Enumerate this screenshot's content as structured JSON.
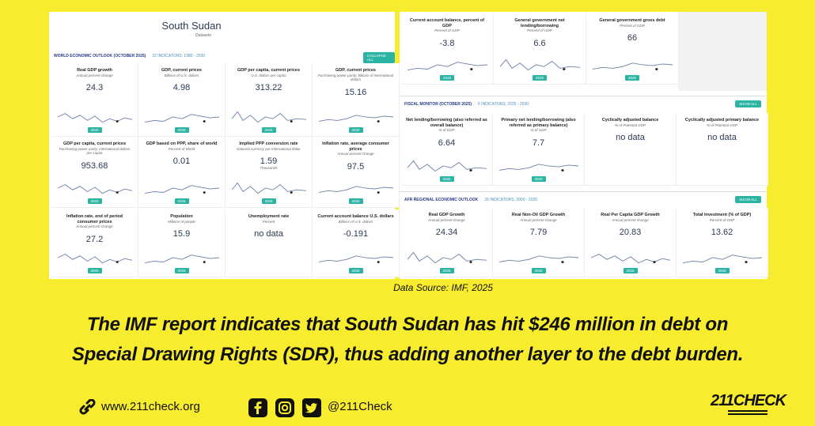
{
  "left_panel": {
    "title": "South Sudan",
    "subtitle": "Datasets",
    "section": {
      "name": "WORLD ECONOMIC OUTLOOK (OCTOBER 2025)",
      "count": "22 INDICATORS, 1980 - 2030",
      "button": "COLLAPSE ALL"
    },
    "cards": [
      {
        "title": "Real GDP growth",
        "subtitle": "Annual percent change",
        "value": 24.3,
        "year": 2025
      },
      {
        "title": "GDP, current prices",
        "subtitle": "Billions of U.S. dollars",
        "value": 4.98,
        "year": 2025
      },
      {
        "title": "GDP per capita, current prices",
        "subtitle": "U.S. dollars per capita",
        "value": 313.22,
        "year": 2025
      },
      {
        "title": "GDP, current prices",
        "subtitle": "Purchasing power parity; billions of international dollars",
        "value": 15.16,
        "year": 2025
      },
      {
        "title": "GDP per capita, current prices",
        "subtitle": "Purchasing power parity; international dollars per capita",
        "value": 953.68,
        "year": 2025
      },
      {
        "title": "GDP based on PPP, share of world",
        "subtitle": "Percent of World",
        "value": 0.01,
        "year": 2025
      },
      {
        "title": "Implied PPP conversion rate",
        "subtitle": "National currency per international dollar",
        "value": 1.59,
        "note": "Thousands",
        "year": 2025
      },
      {
        "title": "Inflation rate, average consumer prices",
        "subtitle": "Annual percent change",
        "value": 97.5,
        "year": 2025
      },
      {
        "title": "Inflation rate, end of period consumer prices",
        "subtitle": "Annual percent change",
        "value": 27.2,
        "year": 2025
      },
      {
        "title": "Population",
        "subtitle": "Millions of people",
        "value": 15.9,
        "year": 2025
      },
      {
        "title": "Unemployment rate",
        "subtitle": "Percent",
        "value": "no data"
      },
      {
        "title": "Current account balance U.S. dollars",
        "subtitle": "Billions of U.S. dollars",
        "value": -0.191,
        "year": 2025
      }
    ]
  },
  "right_panel": {
    "top_cards": [
      {
        "title": "Current account balance, percent of GDP",
        "subtitle": "Percent of GDP",
        "value": -3.8,
        "year": 2025
      },
      {
        "title": "General government net lending/borrowing",
        "subtitle": "Percent of GDP",
        "value": 6.6,
        "year": 2025
      },
      {
        "title": "General government gross debt",
        "subtitle": "Percent of GDP",
        "value": 66,
        "year": 2025
      }
    ],
    "sections": [
      {
        "name": "FISCAL MONITOR (OCTOBER 2025)",
        "count": "6 INDICATORS, 2025 - 2030",
        "button": "SHOW ALL",
        "cards": [
          {
            "title": "Net lending/borrowing (also referred as overall balance)",
            "subtitle": "% of GDP",
            "value": 6.64,
            "year": 2025
          },
          {
            "title": "Primary net lending/borrowing (also referred as primary balance)",
            "subtitle": "% of GDP",
            "value": 7.7,
            "year": 2025
          },
          {
            "title": "Cyclically adjusted balance",
            "subtitle": "% of Potential GDP",
            "value": "no data"
          },
          {
            "title": "Cyclically adjusted primary balance",
            "subtitle": "% of Potential GDP",
            "value": "no data"
          }
        ]
      },
      {
        "name": "AFR REGIONAL ECONOMIC OUTLOOK",
        "count": "26 INDICATORS, 2000 - 2026",
        "button": "SHOW ALL",
        "cards": [
          {
            "title": "Real GDP Growth",
            "subtitle": "Annual percent change",
            "value": 24.34,
            "year": 2025
          },
          {
            "title": "Real Non-Oil GDP Growth",
            "subtitle": "Annual percent change",
            "value": 7.79,
            "year": 2025
          },
          {
            "title": "Real Per Capita GDP Growth",
            "subtitle": "Annual percent change",
            "value": 20.83,
            "year": 2025
          },
          {
            "title": "Total Investment (% of GDP)",
            "subtitle": "Percent of GDP",
            "value": 13.62,
            "year": 2025
          }
        ]
      }
    ]
  },
  "caption": "Data Source: IMF, 2025",
  "headline": [
    "The IMF report indicates that South Sudan has hit $246 million in debt on",
    "Special Drawing Rights (SDR), thus adding another layer to the debt burden."
  ],
  "footer": {
    "website": "www.211check.org",
    "handle": "@211Check",
    "logo": "211CHECK"
  }
}
